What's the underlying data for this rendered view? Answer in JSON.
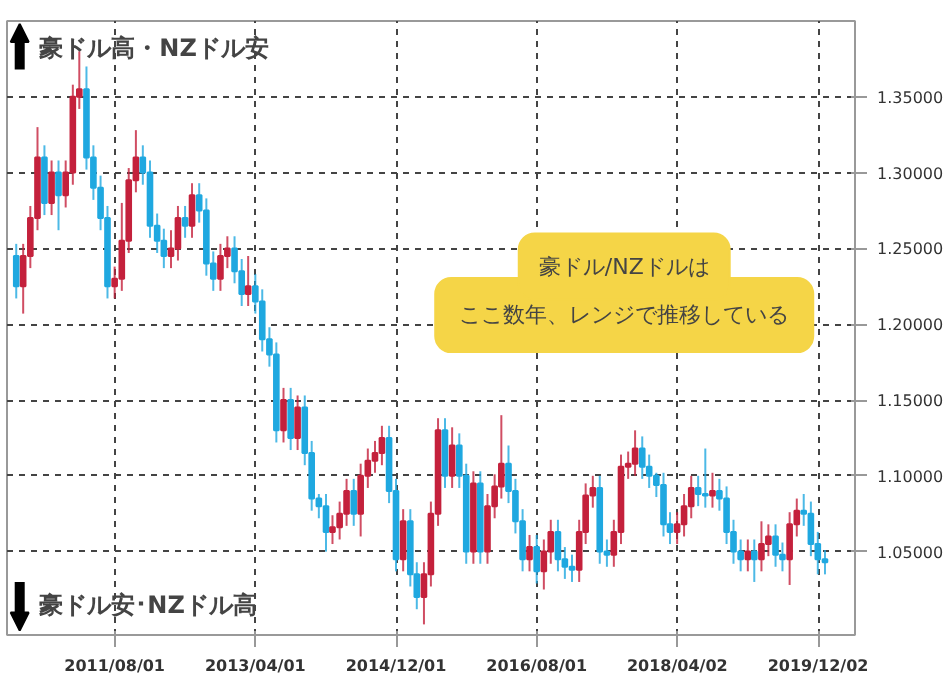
{
  "chart_data": {
    "type": "candlestick",
    "x": [
      "2010-06",
      "2010-07",
      "2010-08",
      "2010-09",
      "2010-10",
      "2010-11",
      "2010-12",
      "2011-01",
      "2011-02",
      "2011-03",
      "2011-04",
      "2011-05",
      "2011-06",
      "2011-07",
      "2011-08",
      "2011-09",
      "2011-10",
      "2011-11",
      "2011-12",
      "2012-01",
      "2012-02",
      "2012-03",
      "2012-04",
      "2012-05",
      "2012-06",
      "2012-07",
      "2012-08",
      "2012-09",
      "2012-10",
      "2012-11",
      "2012-12",
      "2013-01",
      "2013-02",
      "2013-03",
      "2013-04",
      "2013-05",
      "2013-06",
      "2013-07",
      "2013-08",
      "2013-09",
      "2013-10",
      "2013-11",
      "2013-12",
      "2014-01",
      "2014-02",
      "2014-03",
      "2014-04",
      "2014-05",
      "2014-06",
      "2014-07",
      "2014-08",
      "2014-09",
      "2014-10",
      "2014-11",
      "2014-12",
      "2015-01",
      "2015-02",
      "2015-03",
      "2015-04",
      "2015-05",
      "2015-06",
      "2015-07",
      "2015-08",
      "2015-09",
      "2015-10",
      "2015-11",
      "2015-12",
      "2016-01",
      "2016-02",
      "2016-03",
      "2016-04",
      "2016-05",
      "2016-06",
      "2016-07",
      "2016-08",
      "2016-09",
      "2016-10",
      "2016-11",
      "2016-12",
      "2017-01",
      "2017-02",
      "2017-03",
      "2017-04",
      "2017-05",
      "2017-06",
      "2017-07",
      "2017-08",
      "2017-09",
      "2017-10",
      "2017-11",
      "2017-12",
      "2018-01",
      "2018-02",
      "2018-03",
      "2018-04",
      "2018-05",
      "2018-06",
      "2018-07",
      "2018-08",
      "2018-09",
      "2018-10",
      "2018-11",
      "2018-12",
      "2019-01",
      "2019-02",
      "2019-03",
      "2019-04",
      "2019-05",
      "2019-06",
      "2019-07",
      "2019-08",
      "2019-09",
      "2019-10",
      "2019-11",
      "2019-12",
      "2020-01"
    ],
    "ohlc": [
      [
        1.245,
        1.253,
        1.217,
        1.225
      ],
      [
        1.225,
        1.253,
        1.207,
        1.245
      ],
      [
        1.245,
        1.278,
        1.237,
        1.27
      ],
      [
        1.27,
        1.33,
        1.262,
        1.31
      ],
      [
        1.31,
        1.318,
        1.272,
        1.28
      ],
      [
        1.28,
        1.308,
        1.272,
        1.3
      ],
      [
        1.3,
        1.308,
        1.262,
        1.285
      ],
      [
        1.285,
        1.308,
        1.277,
        1.3
      ],
      [
        1.3,
        1.358,
        1.292,
        1.35
      ],
      [
        1.35,
        1.38,
        1.342,
        1.355
      ],
      [
        1.355,
        1.37,
        1.302,
        1.31
      ],
      [
        1.31,
        1.318,
        1.282,
        1.29
      ],
      [
        1.29,
        1.298,
        1.262,
        1.27
      ],
      [
        1.27,
        1.278,
        1.217,
        1.225
      ],
      [
        1.225,
        1.238,
        1.217,
        1.23
      ],
      [
        1.23,
        1.28,
        1.222,
        1.255
      ],
      [
        1.255,
        1.303,
        1.247,
        1.295
      ],
      [
        1.295,
        1.328,
        1.287,
        1.31
      ],
      [
        1.31,
        1.318,
        1.292,
        1.3
      ],
      [
        1.3,
        1.308,
        1.257,
        1.265
      ],
      [
        1.265,
        1.273,
        1.247,
        1.255
      ],
      [
        1.255,
        1.263,
        1.237,
        1.245
      ],
      [
        1.245,
        1.262,
        1.237,
        1.25
      ],
      [
        1.25,
        1.278,
        1.242,
        1.27
      ],
      [
        1.27,
        1.278,
        1.257,
        1.265
      ],
      [
        1.265,
        1.293,
        1.257,
        1.285
      ],
      [
        1.285,
        1.293,
        1.267,
        1.275
      ],
      [
        1.275,
        1.283,
        1.232,
        1.24
      ],
      [
        1.24,
        1.248,
        1.222,
        1.23
      ],
      [
        1.23,
        1.253,
        1.222,
        1.245
      ],
      [
        1.245,
        1.258,
        1.237,
        1.25
      ],
      [
        1.25,
        1.258,
        1.227,
        1.235
      ],
      [
        1.235,
        1.243,
        1.212,
        1.22
      ],
      [
        1.22,
        1.245,
        1.212,
        1.225
      ],
      [
        1.225,
        1.233,
        1.207,
        1.215
      ],
      [
        1.215,
        1.223,
        1.182,
        1.19
      ],
      [
        1.19,
        1.198,
        1.172,
        1.18
      ],
      [
        1.18,
        1.188,
        1.122,
        1.13
      ],
      [
        1.13,
        1.158,
        1.122,
        1.15
      ],
      [
        1.15,
        1.158,
        1.117,
        1.125
      ],
      [
        1.125,
        1.153,
        1.117,
        1.145
      ],
      [
        1.145,
        1.153,
        1.107,
        1.115
      ],
      [
        1.115,
        1.123,
        1.077,
        1.085
      ],
      [
        1.085,
        1.088,
        1.072,
        1.08
      ],
      [
        1.08,
        1.088,
        1.05,
        1.063
      ],
      [
        1.063,
        1.074,
        1.055,
        1.066
      ],
      [
        1.066,
        1.083,
        1.058,
        1.075
      ],
      [
        1.075,
        1.098,
        1.067,
        1.09
      ],
      [
        1.09,
        1.098,
        1.067,
        1.075
      ],
      [
        1.075,
        1.108,
        1.06,
        1.1
      ],
      [
        1.1,
        1.118,
        1.092,
        1.11
      ],
      [
        1.11,
        1.123,
        1.102,
        1.115
      ],
      [
        1.115,
        1.133,
        1.107,
        1.125
      ],
      [
        1.125,
        1.133,
        1.082,
        1.09
      ],
      [
        1.09,
        1.098,
        1.037,
        1.045
      ],
      [
        1.045,
        1.078,
        1.037,
        1.07
      ],
      [
        1.07,
        1.078,
        1.027,
        1.035
      ],
      [
        1.035,
        1.043,
        1.012,
        1.02
      ],
      [
        1.02,
        1.043,
        1.002,
        1.035
      ],
      [
        1.035,
        1.083,
        1.027,
        1.075
      ],
      [
        1.075,
        1.138,
        1.067,
        1.13
      ],
      [
        1.13,
        1.138,
        1.092,
        1.1
      ],
      [
        1.1,
        1.132,
        1.092,
        1.12
      ],
      [
        1.12,
        1.128,
        1.092,
        1.1
      ],
      [
        1.1,
        1.108,
        1.042,
        1.05
      ],
      [
        1.05,
        1.103,
        1.042,
        1.095
      ],
      [
        1.095,
        1.103,
        1.042,
        1.05
      ],
      [
        1.05,
        1.088,
        1.042,
        1.08
      ],
      [
        1.08,
        1.101,
        1.072,
        1.093
      ],
      [
        1.093,
        1.14,
        1.085,
        1.108
      ],
      [
        1.108,
        1.12,
        1.082,
        1.09
      ],
      [
        1.09,
        1.098,
        1.062,
        1.07
      ],
      [
        1.07,
        1.078,
        1.037,
        1.045
      ],
      [
        1.045,
        1.061,
        1.037,
        1.053
      ],
      [
        1.053,
        1.061,
        1.029,
        1.037
      ],
      [
        1.037,
        1.058,
        1.025,
        1.05
      ],
      [
        1.05,
        1.071,
        1.042,
        1.063
      ],
      [
        1.063,
        1.071,
        1.037,
        1.045
      ],
      [
        1.045,
        1.053,
        1.032,
        1.04
      ],
      [
        1.04,
        1.048,
        1.03,
        1.038
      ],
      [
        1.038,
        1.071,
        1.03,
        1.063
      ],
      [
        1.063,
        1.095,
        1.055,
        1.087
      ],
      [
        1.087,
        1.1,
        1.079,
        1.092
      ],
      [
        1.092,
        1.1,
        1.042,
        1.05
      ],
      [
        1.05,
        1.058,
        1.04,
        1.048
      ],
      [
        1.048,
        1.071,
        1.04,
        1.063
      ],
      [
        1.063,
        1.114,
        1.055,
        1.106
      ],
      [
        1.106,
        1.116,
        1.098,
        1.108
      ],
      [
        1.108,
        1.13,
        1.1,
        1.118
      ],
      [
        1.118,
        1.126,
        1.098,
        1.106
      ],
      [
        1.106,
        1.114,
        1.092,
        1.1
      ],
      [
        1.1,
        1.102,
        1.086,
        1.094
      ],
      [
        1.094,
        1.102,
        1.06,
        1.068
      ],
      [
        1.068,
        1.076,
        1.055,
        1.063
      ],
      [
        1.063,
        1.076,
        1.055,
        1.068
      ],
      [
        1.068,
        1.088,
        1.06,
        1.08
      ],
      [
        1.08,
        1.1,
        1.072,
        1.092
      ],
      [
        1.092,
        1.1,
        1.08,
        1.088
      ],
      [
        1.088,
        1.118,
        1.079,
        1.087
      ],
      [
        1.087,
        1.102,
        1.079,
        1.09
      ],
      [
        1.09,
        1.098,
        1.077,
        1.085
      ],
      [
        1.085,
        1.093,
        1.055,
        1.063
      ],
      [
        1.063,
        1.071,
        1.042,
        1.05
      ],
      [
        1.05,
        1.058,
        1.037,
        1.045
      ],
      [
        1.045,
        1.058,
        1.037,
        1.05
      ],
      [
        1.05,
        1.058,
        1.03,
        1.045
      ],
      [
        1.045,
        1.07,
        1.037,
        1.055
      ],
      [
        1.055,
        1.068,
        1.047,
        1.06
      ],
      [
        1.06,
        1.068,
        1.04,
        1.048
      ],
      [
        1.048,
        1.056,
        1.037,
        1.045
      ],
      [
        1.045,
        1.076,
        1.028,
        1.068
      ],
      [
        1.068,
        1.085,
        1.06,
        1.077
      ],
      [
        1.077,
        1.088,
        1.067,
        1.075
      ],
      [
        1.075,
        1.083,
        1.047,
        1.055
      ],
      [
        1.055,
        1.063,
        1.035,
        1.045
      ],
      [
        1.045,
        1.051,
        1.035,
        1.043
      ]
    ],
    "colors": [
      "#1fa8e0",
      "#c4213c",
      "#c4213c",
      "#c4213c",
      "#1fa8e0",
      "#c4213c",
      "#1fa8e0",
      "#c4213c",
      "#c4213c",
      "#c4213c",
      "#1fa8e0",
      "#1fa8e0",
      "#1fa8e0",
      "#1fa8e0",
      "#c4213c",
      "#c4213c",
      "#c4213c",
      "#c4213c",
      "#1fa8e0",
      "#1fa8e0",
      "#1fa8e0",
      "#1fa8e0",
      "#c4213c",
      "#c4213c",
      "#1fa8e0",
      "#c4213c",
      "#1fa8e0",
      "#1fa8e0",
      "#1fa8e0",
      "#c4213c",
      "#c4213c",
      "#1fa8e0",
      "#1fa8e0",
      "#c4213c",
      "#1fa8e0",
      "#1fa8e0",
      "#1fa8e0",
      "#1fa8e0",
      "#c4213c",
      "#1fa8e0",
      "#c4213c",
      "#1fa8e0",
      "#1fa8e0",
      "#1fa8e0",
      "#1fa8e0",
      "#c4213c",
      "#c4213c",
      "#c4213c",
      "#1fa8e0",
      "#c4213c",
      "#c4213c",
      "#c4213c",
      "#c4213c",
      "#1fa8e0",
      "#1fa8e0",
      "#c4213c",
      "#1fa8e0",
      "#1fa8e0",
      "#c4213c",
      "#c4213c",
      "#c4213c",
      "#1fa8e0",
      "#c4213c",
      "#1fa8e0",
      "#1fa8e0",
      "#c4213c",
      "#1fa8e0",
      "#c4213c",
      "#c4213c",
      "#c4213c",
      "#1fa8e0",
      "#1fa8e0",
      "#1fa8e0",
      "#c4213c",
      "#1fa8e0",
      "#c4213c",
      "#c4213c",
      "#1fa8e0",
      "#1fa8e0",
      "#1fa8e0",
      "#c4213c",
      "#c4213c",
      "#c4213c",
      "#1fa8e0",
      "#1fa8e0",
      "#c4213c",
      "#c4213c",
      "#c4213c",
      "#c4213c",
      "#1fa8e0",
      "#1fa8e0",
      "#1fa8e0",
      "#1fa8e0",
      "#1fa8e0",
      "#c4213c",
      "#c4213c",
      "#c4213c",
      "#1fa8e0",
      "#1fa8e0",
      "#c4213c",
      "#1fa8e0",
      "#1fa8e0",
      "#1fa8e0",
      "#1fa8e0",
      "#c4213c",
      "#1fa8e0",
      "#c4213c",
      "#c4213c",
      "#1fa8e0",
      "#1fa8e0",
      "#c4213c",
      "#c4213c",
      "#1fa8e0",
      "#1fa8e0",
      "#1fa8e0",
      "#1fa8e0"
    ],
    "xlim": [
      "2010-04-22",
      "2020-05-10"
    ],
    "xticks": [
      {
        "value": "2011-08-01",
        "label": "2011/08/01"
      },
      {
        "value": "2013-04-01",
        "label": "2013/04/01"
      },
      {
        "value": "2014-12-01",
        "label": "2014/12/01"
      },
      {
        "value": "2016-08-01",
        "label": "2016/08/01"
      },
      {
        "value": "2018-04-02",
        "label": "2018/04/02"
      },
      {
        "value": "2019-12-02",
        "label": "2019/12/02"
      }
    ],
    "ylim": [
      0.995,
      1.4
    ],
    "yticks": [
      {
        "value": 1.05,
        "label": "1.05000"
      },
      {
        "value": 1.1,
        "label": "1.10000"
      },
      {
        "value": 1.15,
        "label": "1.15000"
      },
      {
        "value": 1.2,
        "label": "1.20000"
      },
      {
        "value": 1.25,
        "label": "1.25000"
      },
      {
        "value": 1.3,
        "label": "1.30000"
      },
      {
        "value": 1.35,
        "label": "1.35000"
      }
    ],
    "grid": true,
    "annotations": [
      "豪ドル高・NZドル安",
      "豪ドル安･NZドル高",
      "豪ドル/NZドルは",
      "ここ数年、レンジで推移している"
    ]
  }
}
